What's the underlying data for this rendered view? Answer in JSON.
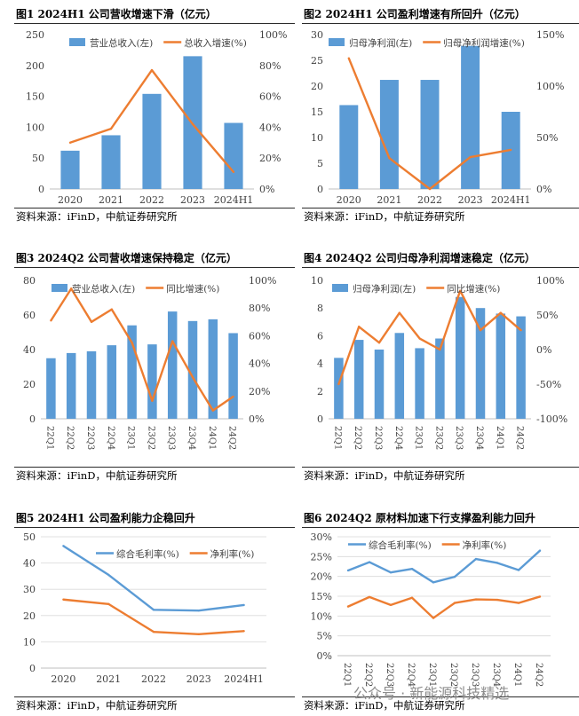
{
  "panels": [
    {
      "title": "图1  2024H1 公司营收增速下滑（亿元）",
      "source": "资料来源：iFinD，中航证券研究所",
      "chart_data": {
        "type": "bar",
        "categories": [
          "2020",
          "2021",
          "2022",
          "2023",
          "2024H1"
        ],
        "series": [
          {
            "name": "营业总收入(左)",
            "type": "bar",
            "axis": "left",
            "color": "#5B9BD5",
            "values": [
              62,
              87,
              154,
              215,
              107
            ]
          },
          {
            "name": "总收入增速(%)",
            "type": "line",
            "axis": "right",
            "color": "#ED7D31",
            "values": [
              30,
              39,
              77,
              42,
              11
            ]
          }
        ],
        "yleft": {
          "min": 0,
          "max": 250,
          "ticks": [
            0,
            50,
            100,
            150,
            200,
            250
          ],
          "labels": [
            "0",
            "50",
            "100",
            "150",
            "200",
            "250"
          ]
        },
        "yright": {
          "min": 0,
          "max": 100,
          "ticks": [
            0,
            20,
            40,
            60,
            80,
            100
          ],
          "labels": [
            "0%",
            "20%",
            "40%",
            "60%",
            "80%",
            "100%"
          ]
        }
      }
    },
    {
      "title": "图2  2024H1 公司盈利增速有所回升（亿元）",
      "source": "资料来源：iFinD，中航证券研究所",
      "chart_data": {
        "type": "bar",
        "categories": [
          "2020",
          "2021",
          "2022",
          "2023",
          "2024H1"
        ],
        "series": [
          {
            "name": "归母净利润(左)",
            "type": "bar",
            "axis": "left",
            "color": "#5B9BD5",
            "values": [
              16.3,
              21.2,
              21.2,
              27.8,
              15.0
            ]
          },
          {
            "name": "归母净利润增速(%)",
            "type": "line",
            "axis": "right",
            "color": "#ED7D31",
            "values": [
              127,
              30,
              0,
              31,
              38
            ]
          }
        ],
        "yleft": {
          "min": 0,
          "max": 30,
          "ticks": [
            0,
            5,
            10,
            15,
            20,
            25,
            30
          ],
          "labels": [
            "0",
            "5",
            "10",
            "15",
            "20",
            "25",
            "30"
          ]
        },
        "yright": {
          "min": 0,
          "max": 150,
          "ticks": [
            0,
            50,
            100,
            150
          ],
          "labels": [
            "0%",
            "50%",
            "100%",
            "150%"
          ]
        }
      }
    },
    {
      "title": "图3  2024Q2 公司营收增速保持稳定（亿元）",
      "source": "资料来源：iFinD，中航证券研究所",
      "chart_data": {
        "type": "bar",
        "categories": [
          "22Q1",
          "22Q2",
          "22Q3",
          "22Q4",
          "23Q1",
          "23Q2",
          "23Q3",
          "23Q4",
          "24Q1",
          "24Q2"
        ],
        "xRotated": true,
        "series": [
          {
            "name": "营业总收入(左)",
            "type": "bar",
            "axis": "left",
            "color": "#5B9BD5",
            "values": [
              35,
              38,
              39,
              42.5,
              54,
              43,
              62,
              56.5,
              57.5,
              49.5
            ]
          },
          {
            "name": "同比增速(%)",
            "type": "line",
            "axis": "right",
            "color": "#ED7D31",
            "values": [
              71,
              94,
              70,
              79,
              55,
              13,
              56,
              30,
              6,
              16
            ]
          }
        ],
        "yleft": {
          "min": 0,
          "max": 80,
          "ticks": [
            0,
            20,
            40,
            60,
            80
          ],
          "labels": [
            "0",
            "20",
            "40",
            "60",
            "80"
          ]
        },
        "yright": {
          "min": 0,
          "max": 100,
          "ticks": [
            0,
            20,
            40,
            60,
            80,
            100
          ],
          "labels": [
            "0%",
            "20%",
            "40%",
            "60%",
            "80%",
            "100%"
          ]
        }
      }
    },
    {
      "title": "图4  2024Q2 公司归母净利润增速稳定（亿元）",
      "source": "资料来源：iFinD，中航证券研究所",
      "chart_data": {
        "type": "bar",
        "categories": [
          "22Q1",
          "22Q2",
          "22Q3",
          "22Q4",
          "23Q1",
          "23Q2",
          "23Q3",
          "23Q4",
          "24Q1",
          "24Q2"
        ],
        "xRotated": true,
        "series": [
          {
            "name": "归母净利润(左)",
            "type": "bar",
            "axis": "left",
            "color": "#5B9BD5",
            "values": [
              4.4,
              5.7,
              5.0,
              6.2,
              5.1,
              5.8,
              8.8,
              8.0,
              7.6,
              7.4
            ]
          },
          {
            "name": "同比增速(%)",
            "type": "line",
            "axis": "right",
            "color": "#ED7D31",
            "values": [
              -50,
              33,
              10,
              53,
              16,
              0,
              85,
              28,
              53,
              28
            ]
          }
        ],
        "yleft": {
          "min": 0,
          "max": 10,
          "ticks": [
            0,
            2,
            4,
            6,
            8,
            10
          ],
          "labels": [
            "0",
            "2",
            "4",
            "6",
            "8",
            "10"
          ]
        },
        "yright": {
          "min": -100,
          "max": 100,
          "ticks": [
            -100,
            -50,
            0,
            50,
            100
          ],
          "labels": [
            "-100%",
            "-50%",
            "0%",
            "50%",
            "100%"
          ]
        }
      }
    },
    {
      "title": "图5  2024H1 公司盈利能力企稳回升",
      "source": "资料来源：iFinD，中航证券研究所",
      "chart_data": {
        "type": "line",
        "categories": [
          "2020",
          "2021",
          "2022",
          "2023",
          "2024H1"
        ],
        "series": [
          {
            "name": "综合毛利率(%)",
            "type": "line",
            "axis": "left",
            "color": "#5B9BD5",
            "values": [
              46.5,
              35.5,
              22.2,
              21.9,
              24.0
            ]
          },
          {
            "name": "净利率(%)",
            "type": "line",
            "axis": "left",
            "color": "#ED7D31",
            "values": [
              26.1,
              24.4,
              13.8,
              12.9,
              14.1
            ]
          }
        ],
        "yleft": {
          "min": 0,
          "max": 50,
          "ticks": [
            0,
            10,
            20,
            30,
            40,
            50
          ],
          "labels": [
            "0",
            "10",
            "20",
            "30",
            "40",
            "50"
          ]
        },
        "grid": true
      }
    },
    {
      "title": "图6  2024Q2 原材料加速下行支撑盈利能力回升",
      "source": "资料来源：iFinD，中航证券研究所",
      "chart_data": {
        "type": "line",
        "categories": [
          "22Q1",
          "22Q2",
          "22Q3",
          "22Q4",
          "23Q1",
          "23Q2",
          "23Q3",
          "23Q4",
          "24Q1",
          "24Q2"
        ],
        "xRotated": true,
        "series": [
          {
            "name": "综合毛利率(%)",
            "type": "line",
            "axis": "left",
            "color": "#5B9BD5",
            "values": [
              21.5,
              23.6,
              21.0,
              21.9,
              18.5,
              19.9,
              24.4,
              23.4,
              21.6,
              26.5
            ]
          },
          {
            "name": "净利率(%)",
            "type": "line",
            "axis": "left",
            "color": "#ED7D31",
            "values": [
              12.4,
              14.8,
              12.8,
              14.6,
              9.5,
              13.3,
              14.2,
              14.1,
              13.3,
              14.9
            ]
          }
        ],
        "yleft": {
          "min": 0,
          "max": 30,
          "ticks": [
            0,
            5,
            10,
            15,
            20,
            25,
            30
          ],
          "labels": [
            "0%",
            "5%",
            "10%",
            "15%",
            "20%",
            "25%",
            "30%"
          ]
        },
        "grid": true
      }
    }
  ],
  "watermark": "公众号 · 新能源科技精选"
}
